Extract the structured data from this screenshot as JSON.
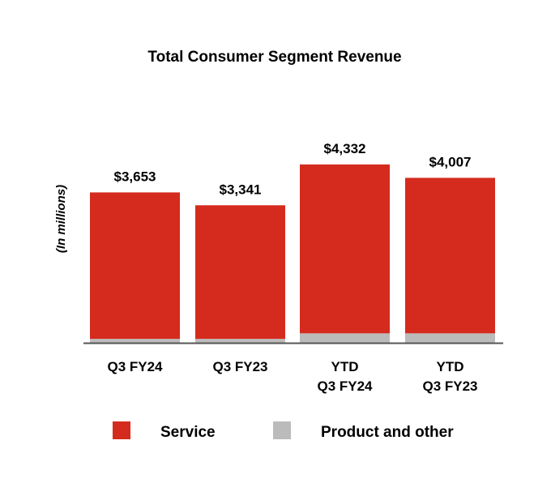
{
  "chart_data": {
    "type": "bar",
    "stacked": true,
    "title": "Total Consumer Segment Revenue",
    "xlabel": "",
    "ylabel": "(In millions)",
    "ylim": [
      0,
      4350
    ],
    "grid": false,
    "legend_position": "bottom",
    "categories": [
      [
        "Q3 FY24"
      ],
      [
        "Q3 FY23"
      ],
      [
        "YTD",
        "Q3 FY24"
      ],
      [
        "YTD",
        "Q3 FY23"
      ]
    ],
    "totals": [
      3653,
      3341,
      4332,
      4007
    ],
    "total_labels": [
      "$3,653",
      "$3,341",
      "$4,332",
      "$4,007"
    ],
    "series": [
      {
        "name": "Product and other",
        "color": "#bbbbbb",
        "values": [
          96,
          96,
          230,
          230
        ]
      },
      {
        "name": "Service",
        "color": "#d52b1e",
        "values": [
          3557,
          3245,
          4102,
          3777
        ]
      }
    ],
    "legend": [
      {
        "name": "Service",
        "color": "#d52b1e"
      },
      {
        "name": "Product and other",
        "color": "#bbbbbb"
      }
    ],
    "axis_color": "#555555"
  }
}
